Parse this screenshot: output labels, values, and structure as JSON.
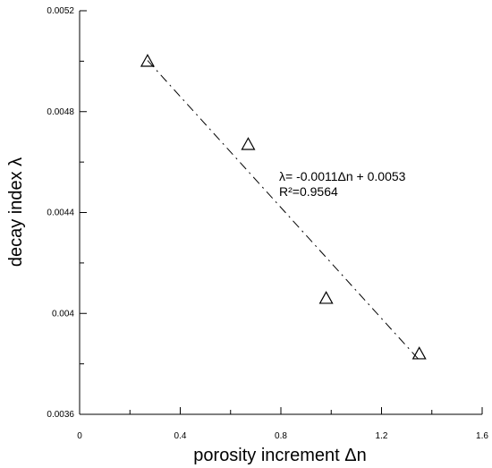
{
  "chart_data": {
    "type": "scatter",
    "title": "",
    "xlabel": "porosity increment  Δn",
    "ylabel": "decay index λ",
    "xlim": [
      0,
      1.6
    ],
    "ylim": [
      0.0036,
      0.0052
    ],
    "x_ticks": [
      0,
      0.4,
      0.8,
      1.2,
      1.6
    ],
    "x_tick_labels": [
      "0",
      "0.4",
      "0.8",
      "1.2",
      "1.6"
    ],
    "y_ticks": [
      0.0036,
      0.004,
      0.0044,
      0.0048,
      0.0052
    ],
    "y_tick_labels": [
      "0.0036",
      "0.004",
      "0.0044",
      "0.0048",
      "0.0052"
    ],
    "grid": false,
    "marker": "triangle-open",
    "series": [
      {
        "points": [
          {
            "x": 0.27,
            "y": 0.005
          },
          {
            "x": 0.67,
            "y": 0.00467
          },
          {
            "x": 0.98,
            "y": 0.00406
          },
          {
            "x": 1.35,
            "y": 0.00384
          }
        ]
      }
    ],
    "trendline": {
      "style": "dash-dot",
      "slope": -0.0011,
      "intercept": 0.0053,
      "x_range": [
        0.27,
        1.35
      ]
    },
    "annotations": {
      "equation": "λ= -0.0011Δn + 0.0053",
      "r_squared": "R²=0.9564"
    }
  }
}
